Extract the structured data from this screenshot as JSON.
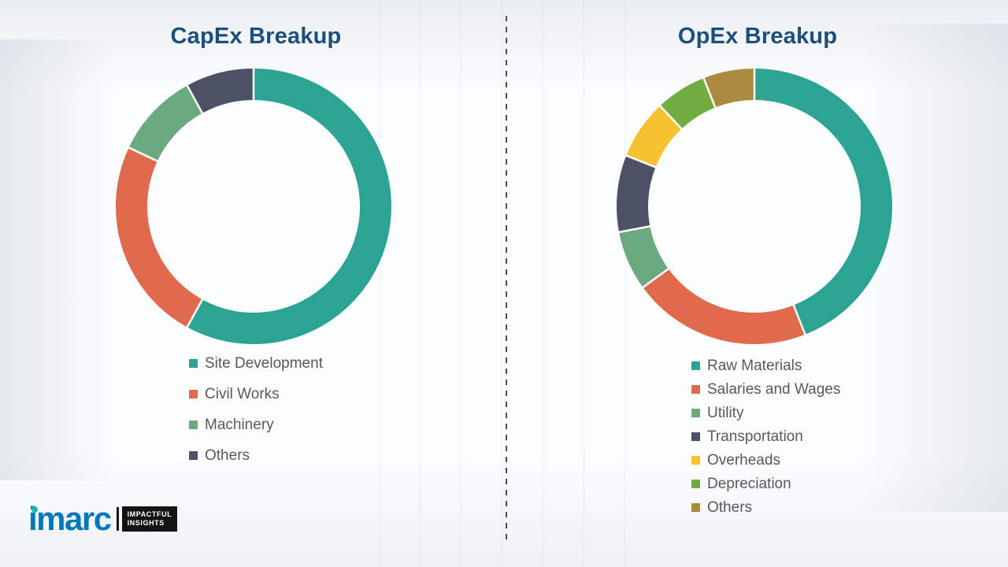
{
  "chart_data": [
    {
      "type": "pie",
      "subtype": "donut",
      "title": "CapEx Breakup",
      "legend_position": "below-left",
      "labels": [
        "Site Development",
        "Civil Works",
        "Machinery",
        "Others"
      ],
      "values": [
        58,
        24,
        10,
        8
      ],
      "unit": "percent (estimated from arc angles)",
      "colors": [
        "#2BA493",
        "#E06A4C",
        "#6BA97E",
        "#4D5166"
      ]
    },
    {
      "type": "pie",
      "subtype": "donut",
      "title": "OpEx Breakup",
      "legend_position": "below-left",
      "labels": [
        "Raw Materials",
        "Salaries and Wages",
        "Utility",
        "Transportation",
        "Overheads",
        "Depreciation",
        "Others"
      ],
      "values": [
        44,
        21,
        7,
        9,
        7,
        6,
        6
      ],
      "unit": "percent (estimated from arc angles)",
      "colors": [
        "#2BA493",
        "#E06A4C",
        "#6BA97E",
        "#4D5166",
        "#F6C22D",
        "#71AC41",
        "#AB8C3E"
      ]
    }
  ],
  "logo": {
    "name": "imarc",
    "tagline_line1": "IMPACTFUL",
    "tagline_line2": "INSIGHTS"
  },
  "style": {
    "title_color": "#1D4E7D",
    "legend_text_color": "#595959",
    "logo_blue": "#0078BE",
    "logo_dot_teal": "#1CB8B2"
  }
}
